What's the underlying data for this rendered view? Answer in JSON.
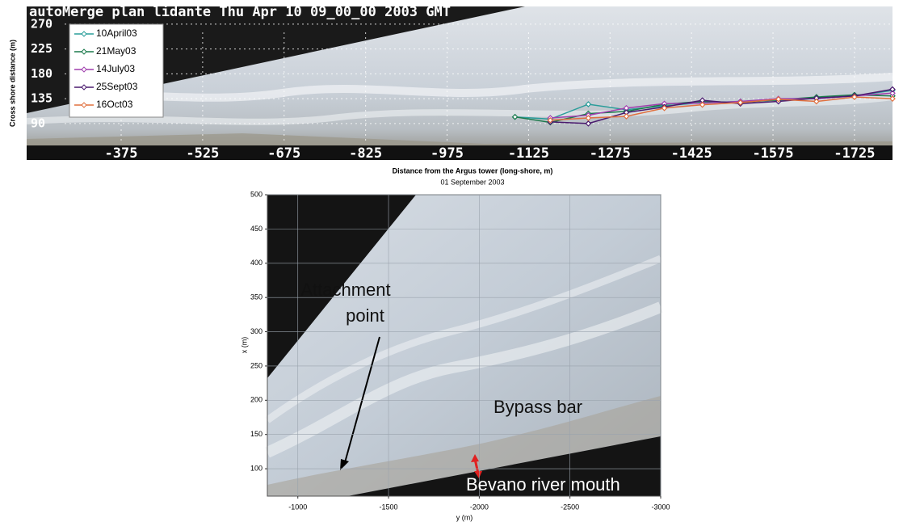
{
  "chart_data": [
    {
      "type": "line",
      "title": "autoMerge plan  lidante Thu Apr 10 09_00_00 2003 GMT",
      "x_label": "Distance from the Argus tower (long-shore, m)",
      "y_label": "Cross shore distance (m)",
      "xlim": [
        -201,
        -1795
      ],
      "ylim": [
        24,
        302
      ],
      "xticks": [
        -375,
        -525,
        -675,
        -825,
        -975,
        -1125,
        -1275,
        -1425,
        -1575,
        -1725
      ],
      "yticks": [
        90,
        135,
        180,
        225,
        270
      ],
      "grid": true,
      "legend": "upper left",
      "x": [
        -1100,
        -1165,
        -1235,
        -1305,
        -1375,
        -1445,
        -1515,
        -1585,
        -1655,
        -1725,
        -1795
      ],
      "series": [
        {
          "name": "10April03",
          "color": "#2a9d9a",
          "values": [
            102,
            98,
            125,
            115,
            122,
            128,
            130,
            132,
            136,
            140,
            150
          ]
        },
        {
          "name": "21May03",
          "color": "#1b7a4b",
          "values": [
            102,
            92,
            108,
            112,
            125,
            130,
            128,
            133,
            138,
            142,
            140
          ]
        },
        {
          "name": "14July03",
          "color": "#a03fae",
          "values": [
            null,
            100,
            105,
            118,
            126,
            127,
            130,
            135,
            135,
            140,
            145
          ]
        },
        {
          "name": "25Sept03",
          "color": "#4a1a6e",
          "values": [
            null,
            93,
            90,
            110,
            120,
            132,
            126,
            130,
            136,
            140,
            152
          ]
        },
        {
          "name": "16Oct03",
          "color": "#e0703f",
          "values": [
            null,
            96,
            100,
            103,
            118,
            124,
            128,
            134,
            130,
            138,
            135
          ]
        }
      ]
    },
    {
      "type": "image",
      "title": "01 September 2003",
      "x_label": "y (m)",
      "y_label": "x (m)",
      "xlim": [
        -832,
        -3000
      ],
      "ylim": [
        60,
        500
      ],
      "xticks": [
        -1000,
        -1500,
        -2000,
        -2500,
        -3000
      ],
      "yticks": [
        100,
        150,
        200,
        250,
        300,
        350,
        400,
        450,
        500
      ],
      "grid": true,
      "annotations": [
        "Attachment",
        "point",
        "Bypass bar",
        "Bevano river mouth"
      ]
    }
  ]
}
